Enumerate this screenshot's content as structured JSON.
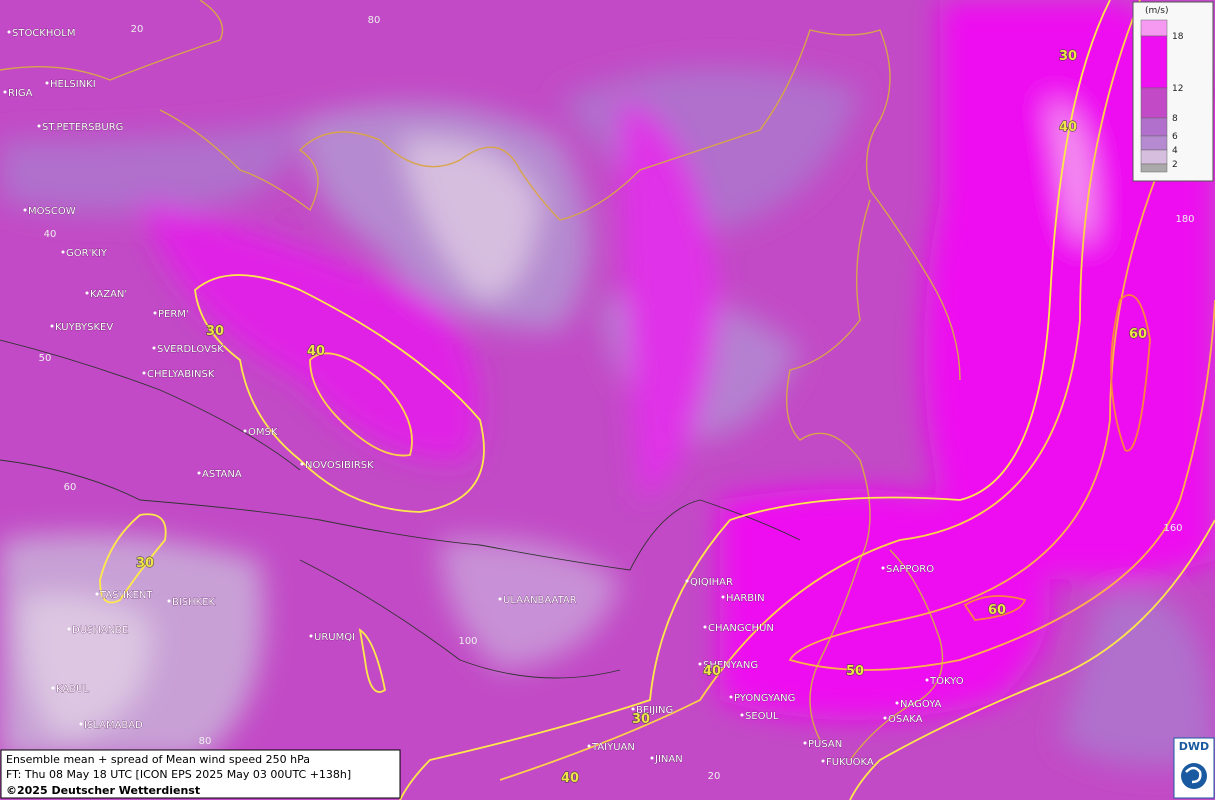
{
  "legend": {
    "unit": "(m/s)",
    "ticks": [
      18,
      12,
      8,
      6,
      4,
      2
    ]
  },
  "cities": [
    "STOCKHOLM",
    "HELSINKI",
    "RIGA",
    "ST.PETERSBURG",
    "MOSCOW",
    "GOR'KIY",
    "KAZAN'",
    "KUYBYSKEV",
    "PERM'",
    "SVERDLOVSK",
    "CHELYABINSK",
    "OMSK",
    "NOVOSIBIRSK",
    "ASTANA",
    "TASHKENT",
    "BISHKEK",
    "DUSHANBE",
    "KABUL",
    "ISLAMABAD",
    "URUMQI",
    "ULAANBAATAR",
    "QIQIHAR",
    "HARBIN",
    "CHANGCHUN",
    "SHENYANG",
    "BEIJING",
    "PYONGYANG",
    "SEOUL",
    "TAIYUAN",
    "JINAN",
    "PUSAN",
    "FUKUOKA",
    "SAPPORO",
    "TOKYO",
    "NAGOYA",
    "OSAKA"
  ],
  "contour_labels": [
    30,
    40,
    30,
    30,
    40,
    60,
    60,
    50,
    40,
    30,
    40
  ],
  "grid_labels": [
    20,
    80,
    40,
    50,
    60,
    180,
    160,
    100,
    80,
    20
  ],
  "caption": {
    "line1": "Ensemble mean + spread of Mean wind speed 250 hPa",
    "line2": "FT: Thu 08 May 18 UTC [ICON EPS 2025 May 03 00UTC +138h]",
    "line3": "©2025 Deutscher Wetterdienst"
  },
  "logo": "DWD"
}
